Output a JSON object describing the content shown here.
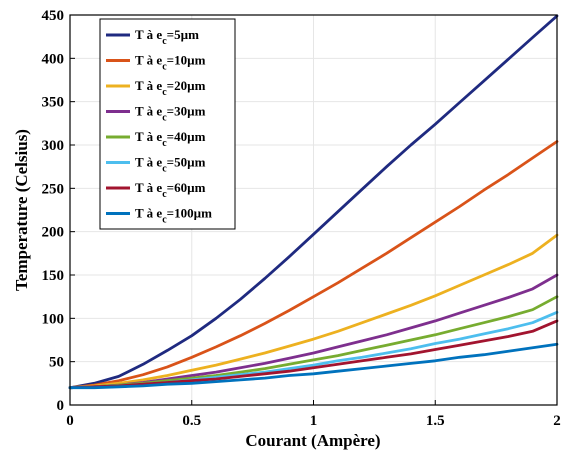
{
  "chart_data": {
    "type": "line",
    "xlabel": "Courant (Ampère)",
    "ylabel": "Temperature (Celsius)",
    "xlim": [
      0,
      2
    ],
    "ylim": [
      0,
      450
    ],
    "xticks": [
      0,
      0.5,
      1,
      1.5,
      2
    ],
    "xtick_labels": [
      "0",
      "0.5",
      "1",
      "1.5",
      "2"
    ],
    "yticks": [
      0,
      50,
      100,
      150,
      200,
      250,
      300,
      350,
      400,
      450
    ],
    "ytick_labels": [
      "0",
      "50",
      "100",
      "150",
      "200",
      "250",
      "300",
      "350",
      "400",
      "450"
    ],
    "grid": true,
    "legend_position": "top-left",
    "x": [
      0,
      0.1,
      0.2,
      0.3,
      0.4,
      0.5,
      0.6,
      0.7,
      0.8,
      0.9,
      1.0,
      1.1,
      1.2,
      1.3,
      1.4,
      1.5,
      1.6,
      1.7,
      1.8,
      1.9,
      2.0
    ],
    "series": [
      {
        "name": "T à e",
        "subscript": "c",
        "suffix": "=5µm",
        "color": "#1f2a80",
        "values": [
          20,
          25,
          33,
          47,
          63,
          80,
          100,
          122,
          146,
          171,
          197,
          223,
          249,
          275,
          300,
          324,
          349,
          374,
          399,
          424,
          449
        ]
      },
      {
        "name": "T à e",
        "subscript": "c",
        "suffix": "=10µm",
        "color": "#d95319",
        "values": [
          20,
          23,
          28,
          35,
          44,
          55,
          67,
          80,
          94,
          109,
          125,
          141,
          158,
          175,
          193,
          211,
          229,
          248,
          266,
          285,
          304
        ]
      },
      {
        "name": "T à e",
        "subscript": "c",
        "suffix": "=20µm",
        "color": "#edb120",
        "values": [
          20,
          22,
          25,
          29,
          34,
          40,
          46,
          53,
          60,
          68,
          76,
          85,
          95,
          105,
          115,
          126,
          138,
          150,
          162,
          175,
          196
        ]
      },
      {
        "name": "T à e",
        "subscript": "c",
        "suffix": "=30µm",
        "color": "#7e2f8e",
        "values": [
          20,
          21,
          23,
          26,
          30,
          34,
          38,
          43,
          48,
          54,
          60,
          67,
          74,
          81,
          89,
          97,
          106,
          115,
          124,
          134,
          150
        ]
      },
      {
        "name": "T à e",
        "subscript": "c",
        "suffix": "=40µm",
        "color": "#77ac30",
        "values": [
          20,
          21,
          23,
          25,
          28,
          31,
          34,
          38,
          42,
          47,
          52,
          57,
          63,
          69,
          75,
          81,
          88,
          95,
          102,
          110,
          125
        ]
      },
      {
        "name": "T à e",
        "subscript": "c",
        "suffix": "=50µm",
        "color": "#4dbeee",
        "values": [
          20,
          21,
          22,
          24,
          26,
          29,
          32,
          35,
          38,
          42,
          46,
          51,
          55,
          60,
          65,
          71,
          76,
          82,
          88,
          95,
          107
        ]
      },
      {
        "name": "T à e",
        "subscript": "c",
        "suffix": "=60µm",
        "color": "#a2142f",
        "values": [
          20,
          21,
          22,
          24,
          26,
          28,
          30,
          33,
          36,
          39,
          43,
          47,
          51,
          55,
          59,
          64,
          69,
          74,
          79,
          85,
          97
        ]
      },
      {
        "name": "T à e",
        "subscript": "c",
        "suffix": "=100µm",
        "color": "#0072bd",
        "values": [
          20,
          20,
          21,
          22,
          24,
          25,
          27,
          29,
          31,
          34,
          36,
          39,
          42,
          45,
          48,
          51,
          55,
          58,
          62,
          66,
          70
        ]
      }
    ]
  }
}
